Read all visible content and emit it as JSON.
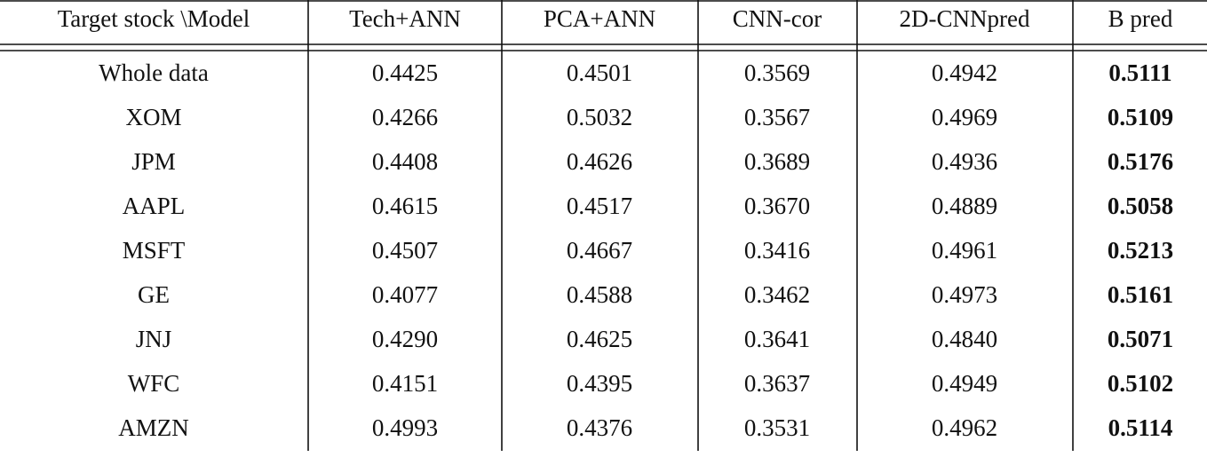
{
  "table": {
    "header": [
      "Target stock \\Model",
      "Tech+ANN",
      "PCA+ANN",
      "CNN-cor",
      "2D-CNNpred",
      "B pred"
    ],
    "rows": [
      [
        "Whole data",
        "0.4425",
        "0.4501",
        "0.3569",
        "0.4942",
        "0.5111"
      ],
      [
        "XOM",
        "0.4266",
        "0.5032",
        "0.3567",
        "0.4969",
        "0.5109"
      ],
      [
        "JPM",
        "0.4408",
        "0.4626",
        "0.3689",
        "0.4936",
        "0.5176"
      ],
      [
        "AAPL",
        "0.4615",
        "0.4517",
        "0.3670",
        "0.4889",
        "0.5058"
      ],
      [
        "MSFT",
        "0.4507",
        "0.4667",
        "0.3416",
        "0.4961",
        "0.5213"
      ],
      [
        "GE",
        "0.4077",
        "0.4588",
        "0.3462",
        "0.4973",
        "0.5161"
      ],
      [
        "JNJ",
        "0.4290",
        "0.4625",
        "0.3641",
        "0.4840",
        "0.5071"
      ],
      [
        "WFC",
        "0.4151",
        "0.4395",
        "0.3637",
        "0.4949",
        "0.5102"
      ],
      [
        "AMZN",
        "0.4993",
        "0.4376",
        "0.3531",
        "0.4962",
        "0.5114"
      ]
    ]
  }
}
